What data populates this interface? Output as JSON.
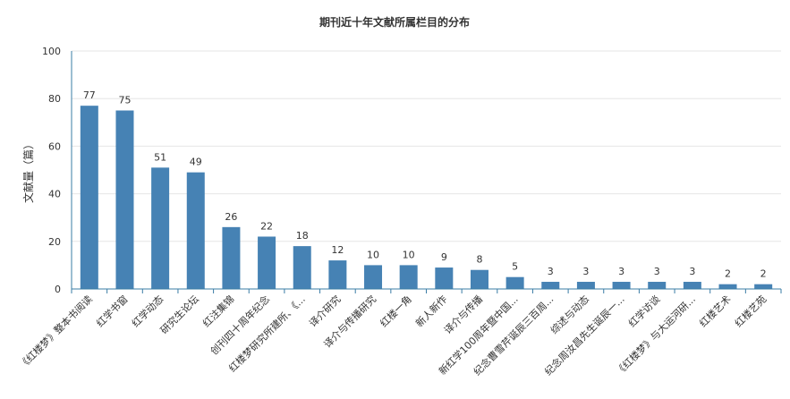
{
  "chart_data": {
    "type": "bar",
    "title": "期刊近十年文献所属栏目的分布",
    "xlabel": "",
    "ylabel": "文献量（篇）",
    "ylim": [
      0,
      100
    ],
    "yticks": [
      0,
      20,
      40,
      60,
      80,
      100
    ],
    "grid": true,
    "bar_color": "#4682b4",
    "categories": [
      "《红楼梦》整本书阅读",
      "红学书窗",
      "红学动态",
      "研究生论坛",
      "红注集锦",
      "创刊四十周年纪念",
      "红楼梦研究所建所、《...",
      "译介研究",
      "译介与传播研究",
      "红楼一角",
      "新人新作",
      "译介与传播",
      "新红学100周年暨中国...",
      "纪念曹雪芹诞辰三百周...",
      "综述与动态",
      "纪念周汝昌先生诞辰一...",
      "红学访谈",
      "《红楼梦》与大运河研...",
      "红楼艺术",
      "红楼艺苑"
    ],
    "values": [
      77,
      75,
      51,
      49,
      26,
      22,
      18,
      12,
      10,
      10,
      9,
      8,
      5,
      3,
      3,
      3,
      3,
      3,
      2,
      2
    ]
  }
}
